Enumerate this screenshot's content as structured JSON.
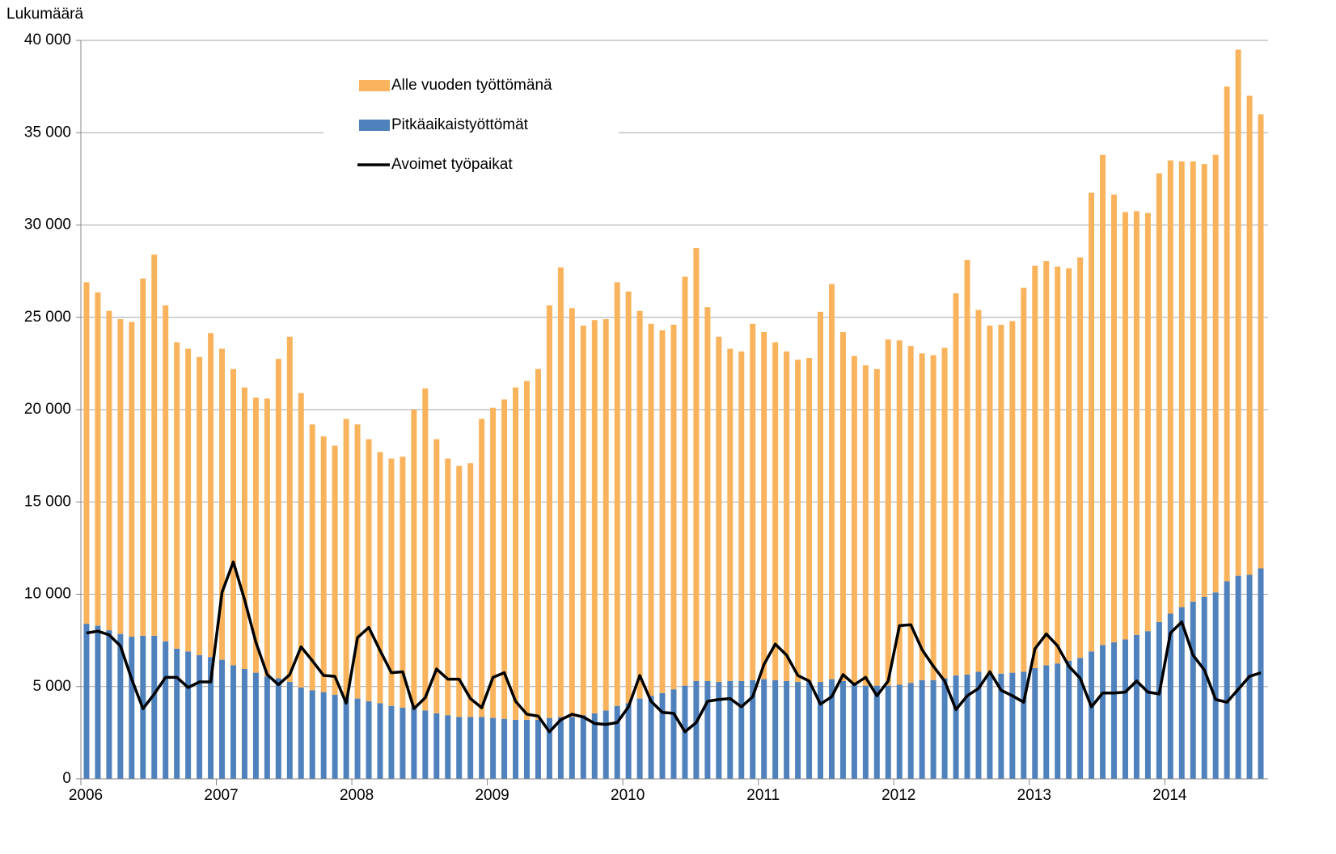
{
  "chart_data": {
    "type": "bar",
    "stacked": true,
    "y_label": "Lukumäärä",
    "categories": [
      "2006",
      null,
      null,
      null,
      null,
      null,
      null,
      null,
      null,
      null,
      null,
      null,
      "2007",
      null,
      null,
      null,
      null,
      null,
      null,
      null,
      null,
      null,
      null,
      null,
      "2008",
      null,
      null,
      null,
      null,
      null,
      null,
      null,
      null,
      null,
      null,
      null,
      "2009",
      null,
      null,
      null,
      null,
      null,
      null,
      null,
      null,
      null,
      null,
      null,
      "2010",
      null,
      null,
      null,
      null,
      null,
      null,
      null,
      null,
      null,
      null,
      null,
      "2011",
      null,
      null,
      null,
      null,
      null,
      null,
      null,
      null,
      null,
      null,
      null,
      "2012",
      null,
      null,
      null,
      null,
      null,
      null,
      null,
      null,
      null,
      null,
      null,
      "2013",
      null,
      null,
      null,
      null,
      null,
      null,
      null,
      null,
      null,
      null,
      null,
      "2014",
      null,
      null,
      null,
      null,
      null,
      null,
      null,
      null
    ],
    "series": [
      {
        "name": "Alle vuoden työttömänä",
        "color": "#f9b35c",
        "values": [
          18500,
          18050,
          17300,
          17050,
          17050,
          19350,
          20650,
          18200,
          16600,
          16400,
          16150,
          17550,
          16850,
          16050,
          15250,
          14900,
          15050,
          17300,
          18700,
          15950,
          14400,
          13850,
          13500,
          15100,
          14850,
          14200,
          13600,
          13400,
          13600,
          16100,
          17450,
          14850,
          13900,
          13600,
          13750,
          16150,
          16800,
          17300,
          18000,
          18350,
          19000,
          22350,
          24350,
          22150,
          21100,
          21300,
          21200,
          22950,
          22300,
          21000,
          20150,
          19650,
          19750,
          22150,
          23450,
          20250,
          18700,
          18000,
          17850,
          19300,
          18800,
          18300,
          17850,
          17450,
          17550,
          20050,
          21400,
          18900,
          17800,
          17350,
          17150,
          18750,
          18650,
          18250,
          17700,
          17600,
          17900,
          20700,
          22450,
          19600,
          18850,
          18900,
          19050,
          20800,
          21800,
          21900,
          21500,
          21250,
          21700,
          24850,
          26550,
          24250,
          23150,
          22950,
          22650,
          24300,
          24550,
          24150,
          23850,
          23450,
          23700,
          26800,
          28500,
          25950,
          24600
        ]
      },
      {
        "name": "Pitkäaikaistyöttömät",
        "color": "#4f81bd",
        "values": [
          8400,
          8300,
          8050,
          7850,
          7700,
          7750,
          7750,
          7450,
          7050,
          6900,
          6700,
          6600,
          6450,
          6150,
          5950,
          5750,
          5550,
          5450,
          5250,
          4950,
          4800,
          4700,
          4550,
          4400,
          4350,
          4200,
          4100,
          3950,
          3850,
          3900,
          3700,
          3550,
          3450,
          3350,
          3350,
          3350,
          3300,
          3250,
          3200,
          3200,
          3200,
          3300,
          3350,
          3350,
          3450,
          3550,
          3700,
          3950,
          4100,
          4350,
          4500,
          4650,
          4850,
          5050,
          5300,
          5300,
          5250,
          5300,
          5300,
          5350,
          5400,
          5350,
          5300,
          5250,
          5250,
          5250,
          5400,
          5300,
          5100,
          5050,
          5050,
          5050,
          5100,
          5200,
          5350,
          5350,
          5450,
          5600,
          5650,
          5800,
          5700,
          5700,
          5750,
          5800,
          6000,
          6150,
          6250,
          6400,
          6550,
          6900,
          7250,
          7400,
          7550,
          7800,
          8000,
          8500,
          8950,
          9300,
          9600,
          9850,
          10100,
          10700,
          11000,
          11050,
          11400
        ]
      },
      {
        "name": "Avoimet työpaikat",
        "color": "#000000",
        "type": "line",
        "values": [
          7900,
          8000,
          7800,
          7200,
          5400,
          3800,
          4600,
          5500,
          5500,
          4950,
          5250,
          5250,
          10100,
          11750,
          9700,
          7400,
          5650,
          5100,
          5650,
          7150,
          6400,
          5600,
          5550,
          4100,
          7650,
          8200,
          6950,
          5750,
          5800,
          3800,
          4400,
          5950,
          5400,
          5400,
          4350,
          3850,
          5500,
          5750,
          4200,
          3500,
          3400,
          2550,
          3200,
          3500,
          3350,
          3000,
          2950,
          3050,
          3900,
          5600,
          4200,
          3600,
          3550,
          2550,
          3050,
          4200,
          4300,
          4350,
          3900,
          4450,
          6200,
          7300,
          6700,
          5600,
          5300,
          4050,
          4450,
          5650,
          5100,
          5500,
          4500,
          5300,
          8300,
          8350,
          7000,
          6100,
          5300,
          3750,
          4500,
          4900,
          5800,
          4800,
          4500,
          4150,
          7050,
          7850,
          7200,
          6100,
          5450,
          3900,
          4650,
          4650,
          4700,
          5300,
          4700,
          4600,
          7900,
          8500,
          6700,
          5900,
          4300,
          4150,
          4850,
          5550,
          5750
        ]
      }
    ],
    "stack_order": [
      1,
      0
    ],
    "ylim": [
      0,
      40000
    ],
    "yticks": [
      0,
      {
        "value": 5000,
        "label": "5 000"
      },
      {
        "value": 10000,
        "label": "10 000"
      },
      {
        "value": 15000,
        "label": "15 000"
      },
      {
        "value": 20000,
        "label": "20 000"
      },
      {
        "value": 25000,
        "label": "25 000"
      },
      {
        "value": 30000,
        "label": "30 000"
      },
      {
        "value": 35000,
        "label": "35 000"
      },
      {
        "value": 40000,
        "label": "40 000"
      }
    ],
    "grid": true,
    "legend": "upper-center"
  }
}
